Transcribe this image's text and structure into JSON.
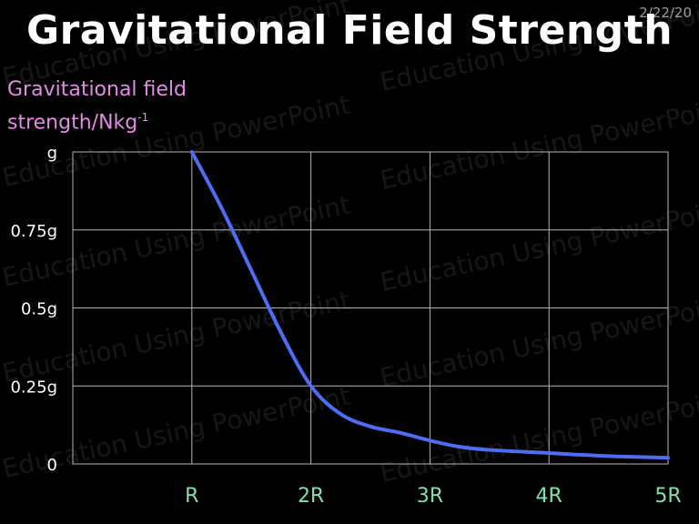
{
  "slide": {
    "date": "2/22/20",
    "title": "Gravitational Field Strength",
    "ylabel_main": "Gravitational field",
    "ylabel_line2": "strength/Nkg",
    "ylabel_sup": "-1",
    "watermark": "Education Using PowerPoint"
  },
  "colors": {
    "background": "#000000",
    "line": "#4d6ef2",
    "ytick": "#ffffff",
    "xtick": "#7fe3a8",
    "ylabel": "#e58ae6",
    "grid": "#b5b5b5"
  },
  "chart_data": {
    "type": "line",
    "title": "Gravitational Field Strength",
    "xlabel": "",
    "ylabel": "Gravitational field strength/Nkg-1",
    "x_ticks": [
      {
        "label": "R",
        "value": 1
      },
      {
        "label": "2R",
        "value": 2
      },
      {
        "label": "3R",
        "value": 3
      },
      {
        "label": "4R",
        "value": 4
      },
      {
        "label": "5R",
        "value": 5
      }
    ],
    "y_ticks": [
      {
        "label": "0",
        "value": 0
      },
      {
        "label": "0.25g",
        "value": 0.25
      },
      {
        "label": "0.5g",
        "value": 0.5
      },
      {
        "label": "0.75g",
        "value": 0.75
      },
      {
        "label": "g",
        "value": 1
      }
    ],
    "xlim": [
      0,
      5
    ],
    "ylim": [
      0,
      1
    ],
    "grid": true,
    "series": [
      {
        "x": [
          1,
          1.25,
          1.5,
          1.75,
          2,
          2.25,
          2.5,
          2.75,
          3,
          3.25,
          3.5,
          4,
          4.5,
          5
        ],
        "values": [
          1,
          0.82,
          0.62,
          0.42,
          0.25,
          0.16,
          0.12,
          0.1,
          0.075,
          0.055,
          0.045,
          0.035,
          0.025,
          0.02
        ]
      }
    ]
  }
}
